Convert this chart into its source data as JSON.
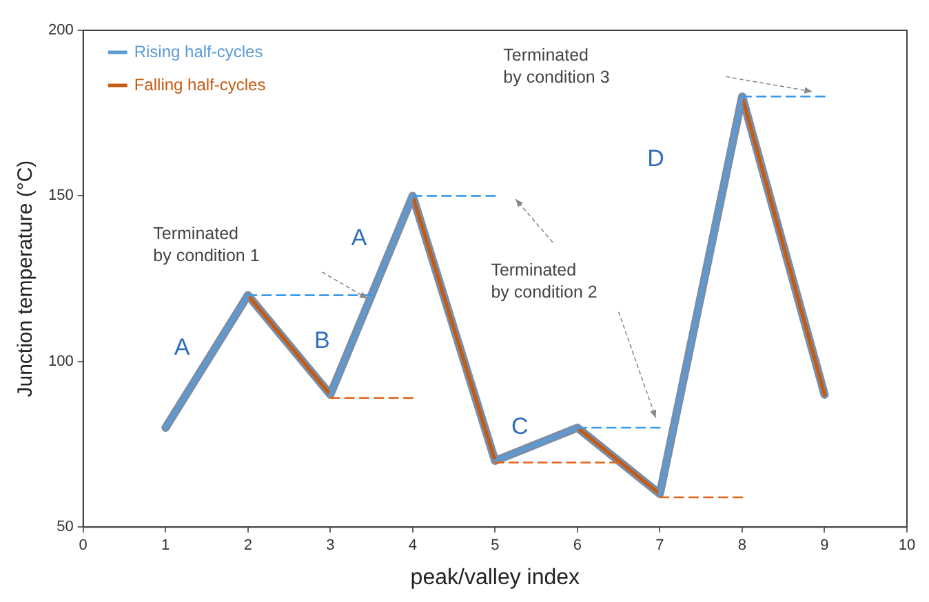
{
  "chart_data": {
    "type": "line",
    "xlabel": "peak/valley index",
    "ylabel": "Junction temperature (°C)",
    "xlim": [
      0,
      10
    ],
    "xticks": [
      0,
      1,
      2,
      3,
      4,
      5,
      6,
      7,
      8,
      9,
      10
    ],
    "ylim": [
      50,
      200
    ],
    "yticks": [
      50,
      100,
      150,
      200
    ],
    "grid": false,
    "legend": "top left",
    "marker": "none",
    "series": [
      {
        "color": "#7b8ea8",
        "x": [
          1,
          2,
          3,
          4,
          5,
          6,
          7,
          8,
          9
        ],
        "values": [
          80,
          120,
          90,
          150,
          70,
          80,
          60,
          180,
          90
        ]
      },
      {
        "name": "Rising half-cycles",
        "color": "#5b9bd5",
        "x": [
          1,
          2,
          2.5,
          3,
          4,
          4.5,
          5,
          6,
          6.5,
          7,
          8
        ],
        "values": [
          80,
          120,
          null,
          90,
          150,
          null,
          70,
          80,
          null,
          60,
          180
        ]
      },
      {
        "name": "Falling half-cycles",
        "color": "#c55a11",
        "x": [
          2,
          3,
          3.5,
          4,
          5,
          5.5,
          6,
          7,
          7.5,
          8,
          9
        ],
        "values": [
          120,
          90,
          null,
          150,
          70,
          null,
          80,
          60,
          null,
          180,
          90
        ]
      },
      {
        "color": "#3d9be9",
        "line_style": "dashed",
        "x": [
          2,
          3.5
        ],
        "values": [
          120,
          120
        ]
      },
      {
        "color": "#e0661a",
        "line_style": "dashed",
        "x": [
          3,
          4
        ],
        "values": [
          89,
          89
        ]
      },
      {
        "color": "#3d9be9",
        "line_style": "dashed",
        "x": [
          4,
          5
        ],
        "values": [
          150,
          150
        ]
      },
      {
        "color": "#e0661a",
        "line_style": "dashed",
        "x": [
          5,
          6.5
        ],
        "values": [
          69.5,
          69.5
        ]
      },
      {
        "color": "#3d9be9",
        "line_style": "dashed",
        "x": [
          6,
          7
        ],
        "values": [
          80,
          80
        ]
      },
      {
        "color": "#e0661a",
        "line_style": "dashed",
        "x": [
          7,
          8
        ],
        "values": [
          59,
          59
        ]
      },
      {
        "color": "#3d9be9",
        "line_style": "dashed",
        "x": [
          8,
          9
        ],
        "values": [
          180,
          180
        ]
      }
    ],
    "annotations": [
      "A",
      "B",
      "A",
      "C",
      "D",
      "Terminated\nby condition 1",
      "Terminated\nby condition 2",
      "Terminated\nby condition 3"
    ]
  }
}
